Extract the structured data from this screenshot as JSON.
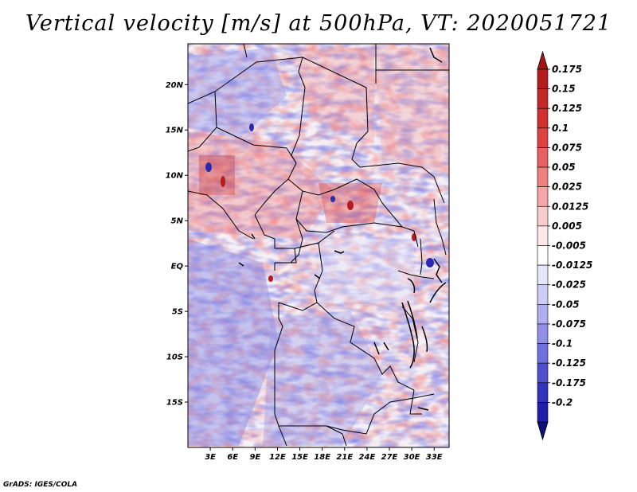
{
  "title": "Vertical velocity [m/s] at 500hPa, VT: 2020051721",
  "footer": "GrADS: IGES/COLA",
  "map": {
    "lat_labels": [
      "20N",
      "15N",
      "10N",
      "5N",
      "EQ",
      "5S",
      "10S",
      "15S"
    ],
    "lat_values": [
      20,
      15,
      10,
      5,
      0,
      -5,
      -10,
      -15
    ],
    "lon_labels": [
      "3E",
      "6E",
      "9E",
      "12E",
      "15E",
      "18E",
      "21E",
      "24E",
      "27E",
      "30E",
      "33E"
    ],
    "lon_values": [
      3,
      6,
      9,
      12,
      15,
      18,
      21,
      24,
      27,
      30,
      33
    ],
    "lon_range": [
      0,
      35
    ],
    "lat_range": [
      -20,
      24.5
    ]
  },
  "colorbar": {
    "labels": [
      "0.175",
      "0.15",
      "0.125",
      "0.1",
      "0.075",
      "0.05",
      "0.025",
      "0.0125",
      "0.005",
      "-0.005",
      "-0.0125",
      "-0.025",
      "-0.05",
      "-0.075",
      "-0.1",
      "-0.125",
      "-0.175",
      "-0.2"
    ],
    "colors": [
      "#b71c1c",
      "#c62828",
      "#d32f2f",
      "#e04040",
      "#e86060",
      "#ef8080",
      "#f4a5a5",
      "#f9cccc",
      "#fde8e8",
      "#ffffff",
      "#e6e6fb",
      "#ccccf7",
      "#aeaef0",
      "#8f8fe8",
      "#6f6fdd",
      "#5050cf",
      "#3232bd",
      "#1e1ea8",
      "#15158f"
    ],
    "top_color": "#a31515",
    "bottom_color": "#0f0f7a"
  }
}
